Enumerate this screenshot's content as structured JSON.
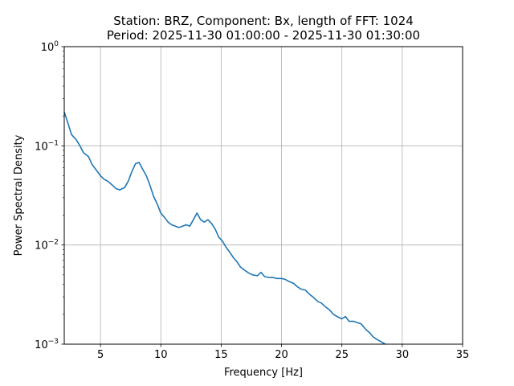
{
  "chart_data": {
    "type": "line",
    "title_line1": "Station: BRZ, Component: Bx, length of FFT: 1024",
    "title_line2": "Period: 2025-11-30 01:00:00 - 2025-11-30 01:30:00",
    "xlabel": "Frequency [Hz]",
    "ylabel": "Power Spectral Density",
    "xlim": [
      2,
      35
    ],
    "ylim": [
      0.001,
      1
    ],
    "yscale": "log",
    "grid": true,
    "line_color": "#1f77b4",
    "xticks": [
      {
        "value": 5,
        "label": "5"
      },
      {
        "value": 10,
        "label": "10"
      },
      {
        "value": 15,
        "label": "15"
      },
      {
        "value": 20,
        "label": "20"
      },
      {
        "value": 25,
        "label": "25"
      },
      {
        "value": 30,
        "label": "30"
      },
      {
        "value": 35,
        "label": "35"
      }
    ],
    "yticks": [
      {
        "value": 0.001,
        "base": "10",
        "exp": "−3"
      },
      {
        "value": 0.01,
        "base": "10",
        "exp": "−2"
      },
      {
        "value": 0.1,
        "base": "10",
        "exp": "−1"
      },
      {
        "value": 1,
        "base": "10",
        "exp": "0"
      }
    ],
    "series": [
      {
        "x": [
          2.0,
          2.3,
          2.6,
          3.0,
          3.3,
          3.6,
          4.0,
          4.3,
          4.6,
          5.0,
          5.3,
          5.6,
          6.0,
          6.3,
          6.6,
          7.0,
          7.3,
          7.6,
          7.9,
          8.2,
          8.5,
          8.8,
          9.1,
          9.4,
          9.7,
          10.0,
          10.3,
          10.6,
          10.9,
          11.2,
          11.5,
          11.8,
          12.1,
          12.4,
          12.7,
          13.0,
          13.3,
          13.6,
          13.9,
          14.2,
          14.5,
          14.8,
          15.1,
          15.4,
          15.7,
          16.0,
          16.3,
          16.6,
          17.0,
          17.3,
          17.6,
          18.0,
          18.3,
          18.6,
          19.0,
          19.3,
          19.6,
          20.0,
          20.3,
          20.6,
          21.0,
          21.3,
          21.6,
          22.0,
          22.3,
          22.6,
          23.0,
          23.3,
          23.6,
          24.0,
          24.3,
          24.6,
          25.0,
          25.3,
          25.6,
          26.0,
          26.3,
          26.6,
          27.0,
          27.3,
          27.6,
          28.0,
          28.3,
          28.6
        ],
        "y": [
          0.22,
          0.17,
          0.13,
          0.115,
          0.1,
          0.085,
          0.078,
          0.065,
          0.058,
          0.05,
          0.046,
          0.044,
          0.04,
          0.037,
          0.036,
          0.038,
          0.044,
          0.055,
          0.066,
          0.068,
          0.058,
          0.05,
          0.04,
          0.031,
          0.026,
          0.021,
          0.019,
          0.017,
          0.016,
          0.0155,
          0.015,
          0.0155,
          0.016,
          0.0155,
          0.018,
          0.021,
          0.018,
          0.017,
          0.018,
          0.0165,
          0.0145,
          0.012,
          0.011,
          0.0095,
          0.0085,
          0.0075,
          0.0068,
          0.006,
          0.0055,
          0.0052,
          0.005,
          0.0049,
          0.0053,
          0.0048,
          0.0047,
          0.0047,
          0.0046,
          0.0046,
          0.0045,
          0.0043,
          0.0041,
          0.0038,
          0.0036,
          0.0035,
          0.0032,
          0.003,
          0.0027,
          0.0026,
          0.0024,
          0.0022,
          0.002,
          0.0019,
          0.0018,
          0.0019,
          0.0017,
          0.0017,
          0.00165,
          0.0016,
          0.0014,
          0.0013,
          0.00118,
          0.0011,
          0.00105,
          0.001
        ]
      }
    ]
  }
}
